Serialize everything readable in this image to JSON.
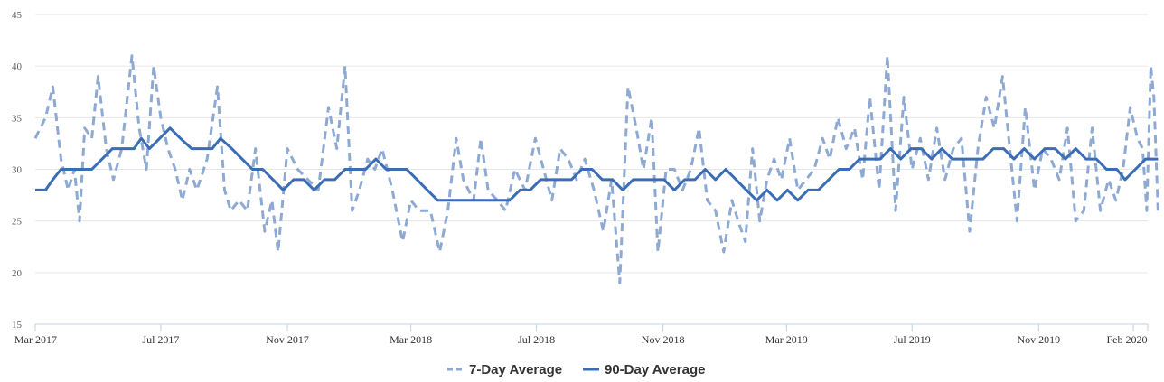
{
  "chart_data": {
    "type": "line",
    "title": "",
    "xlabel": "",
    "ylabel": "",
    "ylim": [
      15,
      45
    ],
    "y_ticks": [
      "15",
      "20",
      "25",
      "30",
      "35",
      "40",
      "45"
    ],
    "x_range": [
      "2017-03-01",
      "2020-02-15"
    ],
    "x_ticks": [
      {
        "label": "Mar 2017",
        "date": "2017-03-01"
      },
      {
        "label": "Jul 2017",
        "date": "2017-07-01"
      },
      {
        "label": "Nov 2017",
        "date": "2017-11-01"
      },
      {
        "label": "Mar 2018",
        "date": "2018-03-01"
      },
      {
        "label": "Jul 2018",
        "date": "2018-07-01"
      },
      {
        "label": "Nov 2018",
        "date": "2018-11-01"
      },
      {
        "label": "Mar 2019",
        "date": "2019-03-01"
      },
      {
        "label": "Jul 2019",
        "date": "2019-07-01"
      },
      {
        "label": "Nov 2019",
        "date": "2019-11-01"
      },
      {
        "label": "Feb 2020",
        "date": "2020-02-01"
      }
    ],
    "grid": true,
    "legend_position": "bottom-center",
    "series": [
      {
        "name": "7-Day Average",
        "color": "#8eaad3",
        "style": "dashed",
        "points": [
          [
            "2017-03-01",
            33
          ],
          [
            "2017-03-11",
            35
          ],
          [
            "2017-03-18",
            38
          ],
          [
            "2017-03-26",
            31
          ],
          [
            "2017-04-02",
            28
          ],
          [
            "2017-04-08",
            30
          ],
          [
            "2017-04-13",
            25
          ],
          [
            "2017-04-18",
            34
          ],
          [
            "2017-04-25",
            33
          ],
          [
            "2017-05-01",
            39
          ],
          [
            "2017-05-09",
            32
          ],
          [
            "2017-05-16",
            29
          ],
          [
            "2017-05-24",
            32
          ],
          [
            "2017-06-03",
            41
          ],
          [
            "2017-06-10",
            34
          ],
          [
            "2017-06-17",
            30
          ],
          [
            "2017-06-24",
            40
          ],
          [
            "2017-07-01",
            35
          ],
          [
            "2017-07-08",
            32
          ],
          [
            "2017-07-15",
            30
          ],
          [
            "2017-07-22",
            27
          ],
          [
            "2017-07-29",
            30
          ],
          [
            "2017-08-05",
            28
          ],
          [
            "2017-08-15",
            31
          ],
          [
            "2017-08-25",
            38
          ],
          [
            "2017-09-01",
            28
          ],
          [
            "2017-09-07",
            26
          ],
          [
            "2017-09-15",
            27
          ],
          [
            "2017-09-23",
            26
          ],
          [
            "2017-10-01",
            32
          ],
          [
            "2017-10-10",
            24
          ],
          [
            "2017-10-17",
            27
          ],
          [
            "2017-10-23",
            22
          ],
          [
            "2017-11-01",
            32
          ],
          [
            "2017-11-11",
            30
          ],
          [
            "2017-11-21",
            29
          ],
          [
            "2017-12-01",
            28
          ],
          [
            "2017-12-11",
            36
          ],
          [
            "2017-12-19",
            32
          ],
          [
            "2017-12-27",
            40
          ],
          [
            "2018-01-03",
            26
          ],
          [
            "2018-01-10",
            28
          ],
          [
            "2018-01-18",
            31
          ],
          [
            "2018-01-25",
            30
          ],
          [
            "2018-02-01",
            32
          ],
          [
            "2018-02-11",
            28
          ],
          [
            "2018-02-21",
            23
          ],
          [
            "2018-03-01",
            27
          ],
          [
            "2018-03-09",
            26
          ],
          [
            "2018-03-20",
            26
          ],
          [
            "2018-03-29",
            22
          ],
          [
            "2018-04-06",
            26
          ],
          [
            "2018-04-14",
            33
          ],
          [
            "2018-04-21",
            29
          ],
          [
            "2018-05-01",
            27
          ],
          [
            "2018-05-08",
            33
          ],
          [
            "2018-05-15",
            28
          ],
          [
            "2018-05-24",
            27
          ],
          [
            "2018-06-01",
            26
          ],
          [
            "2018-06-10",
            30
          ],
          [
            "2018-06-20",
            28
          ],
          [
            "2018-06-30",
            33
          ],
          [
            "2018-07-08",
            30
          ],
          [
            "2018-07-16",
            27
          ],
          [
            "2018-07-24",
            32
          ],
          [
            "2018-08-01",
            31
          ],
          [
            "2018-08-09",
            29
          ],
          [
            "2018-08-17",
            31
          ],
          [
            "2018-08-26",
            28
          ],
          [
            "2018-09-04",
            24
          ],
          [
            "2018-09-12",
            29
          ],
          [
            "2018-09-20",
            19
          ],
          [
            "2018-09-28",
            38
          ],
          [
            "2018-10-06",
            34
          ],
          [
            "2018-10-13",
            30
          ],
          [
            "2018-10-21",
            35
          ],
          [
            "2018-10-27",
            22
          ],
          [
            "2018-11-04",
            30
          ],
          [
            "2018-11-12",
            30
          ],
          [
            "2018-11-20",
            28
          ],
          [
            "2018-11-28",
            30
          ],
          [
            "2018-12-06",
            34
          ],
          [
            "2018-12-14",
            27
          ],
          [
            "2018-12-22",
            26
          ],
          [
            "2018-12-30",
            22
          ],
          [
            "2019-01-07",
            27
          ],
          [
            "2019-01-13",
            25
          ],
          [
            "2019-01-20",
            23
          ],
          [
            "2019-01-27",
            32
          ],
          [
            "2019-02-03",
            25
          ],
          [
            "2019-02-10",
            29
          ],
          [
            "2019-02-17",
            31
          ],
          [
            "2019-02-24",
            29
          ],
          [
            "2019-03-04",
            33
          ],
          [
            "2019-03-12",
            28
          ],
          [
            "2019-03-20",
            29
          ],
          [
            "2019-03-28",
            30
          ],
          [
            "2019-04-05",
            33
          ],
          [
            "2019-04-12",
            31
          ],
          [
            "2019-04-20",
            35
          ],
          [
            "2019-04-28",
            32
          ],
          [
            "2019-05-06",
            34
          ],
          [
            "2019-05-14",
            29
          ],
          [
            "2019-05-21",
            37
          ],
          [
            "2019-05-30",
            28
          ],
          [
            "2019-06-07",
            41
          ],
          [
            "2019-06-15",
            26
          ],
          [
            "2019-06-23",
            37
          ],
          [
            "2019-07-01",
            30
          ],
          [
            "2019-07-09",
            33
          ],
          [
            "2019-07-17",
            29
          ],
          [
            "2019-07-25",
            34
          ],
          [
            "2019-08-02",
            29
          ],
          [
            "2019-08-10",
            32
          ],
          [
            "2019-08-18",
            33
          ],
          [
            "2019-08-26",
            24
          ],
          [
            "2019-09-03",
            32
          ],
          [
            "2019-09-11",
            37
          ],
          [
            "2019-09-19",
            34
          ],
          [
            "2019-09-27",
            39
          ],
          [
            "2019-10-05",
            31
          ],
          [
            "2019-10-11",
            25
          ],
          [
            "2019-10-19",
            36
          ],
          [
            "2019-10-28",
            28
          ],
          [
            "2019-11-05",
            32
          ],
          [
            "2019-11-13",
            31
          ],
          [
            "2019-11-21",
            29
          ],
          [
            "2019-11-29",
            34
          ],
          [
            "2019-12-07",
            25
          ],
          [
            "2019-12-15",
            26
          ],
          [
            "2019-12-23",
            34
          ],
          [
            "2019-12-31",
            26
          ],
          [
            "2020-01-08",
            29
          ],
          [
            "2020-01-15",
            27
          ],
          [
            "2020-01-22",
            30
          ],
          [
            "2020-01-29",
            36
          ],
          [
            "2020-02-05",
            33
          ],
          [
            "2020-02-10",
            32
          ],
          [
            "2020-02-14",
            26
          ],
          [
            "2020-02-18",
            40
          ],
          [
            "2020-02-21",
            37
          ],
          [
            "2020-02-25",
            26
          ]
        ]
      },
      {
        "name": "90-Day Average",
        "color": "#3a6db5",
        "style": "solid",
        "points": [
          [
            "2017-03-01",
            28
          ],
          [
            "2017-03-11",
            28
          ],
          [
            "2017-03-18",
            29
          ],
          [
            "2017-03-26",
            30
          ],
          [
            "2017-04-05",
            30
          ],
          [
            "2017-04-15",
            30
          ],
          [
            "2017-04-25",
            30
          ],
          [
            "2017-05-05",
            31
          ],
          [
            "2017-05-15",
            32
          ],
          [
            "2017-05-25",
            32
          ],
          [
            "2017-06-05",
            32
          ],
          [
            "2017-06-12",
            33
          ],
          [
            "2017-06-20",
            32
          ],
          [
            "2017-06-30",
            33
          ],
          [
            "2017-07-10",
            34
          ],
          [
            "2017-07-20",
            33
          ],
          [
            "2017-07-31",
            32
          ],
          [
            "2017-08-10",
            32
          ],
          [
            "2017-08-20",
            32
          ],
          [
            "2017-08-28",
            33
          ],
          [
            "2017-09-08",
            32
          ],
          [
            "2017-09-18",
            31
          ],
          [
            "2017-09-28",
            30
          ],
          [
            "2017-10-08",
            30
          ],
          [
            "2017-10-18",
            29
          ],
          [
            "2017-10-28",
            28
          ],
          [
            "2017-11-07",
            29
          ],
          [
            "2017-11-17",
            29
          ],
          [
            "2017-11-27",
            28
          ],
          [
            "2017-12-07",
            29
          ],
          [
            "2017-12-17",
            29
          ],
          [
            "2017-12-27",
            30
          ],
          [
            "2018-01-06",
            30
          ],
          [
            "2018-01-16",
            30
          ],
          [
            "2018-01-26",
            31
          ],
          [
            "2018-02-05",
            30
          ],
          [
            "2018-02-15",
            30
          ],
          [
            "2018-02-25",
            30
          ],
          [
            "2018-03-07",
            29
          ],
          [
            "2018-03-17",
            28
          ],
          [
            "2018-03-27",
            27
          ],
          [
            "2018-04-06",
            27
          ],
          [
            "2018-04-16",
            27
          ],
          [
            "2018-04-26",
            27
          ],
          [
            "2018-05-06",
            27
          ],
          [
            "2018-05-16",
            27
          ],
          [
            "2018-05-26",
            27
          ],
          [
            "2018-06-05",
            27
          ],
          [
            "2018-06-15",
            28
          ],
          [
            "2018-06-25",
            28
          ],
          [
            "2018-07-05",
            29
          ],
          [
            "2018-07-15",
            29
          ],
          [
            "2018-07-25",
            29
          ],
          [
            "2018-08-04",
            29
          ],
          [
            "2018-08-14",
            30
          ],
          [
            "2018-08-24",
            30
          ],
          [
            "2018-09-03",
            29
          ],
          [
            "2018-09-13",
            29
          ],
          [
            "2018-09-23",
            28
          ],
          [
            "2018-10-03",
            29
          ],
          [
            "2018-10-13",
            29
          ],
          [
            "2018-10-23",
            29
          ],
          [
            "2018-11-02",
            29
          ],
          [
            "2018-11-12",
            28
          ],
          [
            "2018-11-22",
            29
          ],
          [
            "2018-12-02",
            29
          ],
          [
            "2018-12-12",
            30
          ],
          [
            "2018-12-22",
            29
          ],
          [
            "2019-01-01",
            30
          ],
          [
            "2019-01-11",
            29
          ],
          [
            "2019-01-21",
            28
          ],
          [
            "2019-01-31",
            27
          ],
          [
            "2019-02-10",
            28
          ],
          [
            "2019-02-20",
            27
          ],
          [
            "2019-03-02",
            28
          ],
          [
            "2019-03-12",
            27
          ],
          [
            "2019-03-22",
            28
          ],
          [
            "2019-04-01",
            28
          ],
          [
            "2019-04-11",
            29
          ],
          [
            "2019-04-21",
            30
          ],
          [
            "2019-05-01",
            30
          ],
          [
            "2019-05-11",
            31
          ],
          [
            "2019-05-21",
            31
          ],
          [
            "2019-05-31",
            31
          ],
          [
            "2019-06-10",
            32
          ],
          [
            "2019-06-20",
            31
          ],
          [
            "2019-06-30",
            32
          ],
          [
            "2019-07-10",
            32
          ],
          [
            "2019-07-20",
            31
          ],
          [
            "2019-07-30",
            32
          ],
          [
            "2019-08-09",
            31
          ],
          [
            "2019-08-19",
            31
          ],
          [
            "2019-08-29",
            31
          ],
          [
            "2019-09-08",
            31
          ],
          [
            "2019-09-18",
            32
          ],
          [
            "2019-09-28",
            32
          ],
          [
            "2019-10-08",
            31
          ],
          [
            "2019-10-18",
            32
          ],
          [
            "2019-10-28",
            31
          ],
          [
            "2019-11-07",
            32
          ],
          [
            "2019-11-17",
            32
          ],
          [
            "2019-11-27",
            31
          ],
          [
            "2019-12-07",
            32
          ],
          [
            "2019-12-17",
            31
          ],
          [
            "2019-12-27",
            31
          ],
          [
            "2020-01-06",
            30
          ],
          [
            "2020-01-16",
            30
          ],
          [
            "2020-01-24",
            29
          ],
          [
            "2020-02-03",
            30
          ],
          [
            "2020-02-13",
            31
          ],
          [
            "2020-02-25",
            31
          ]
        ]
      }
    ]
  }
}
